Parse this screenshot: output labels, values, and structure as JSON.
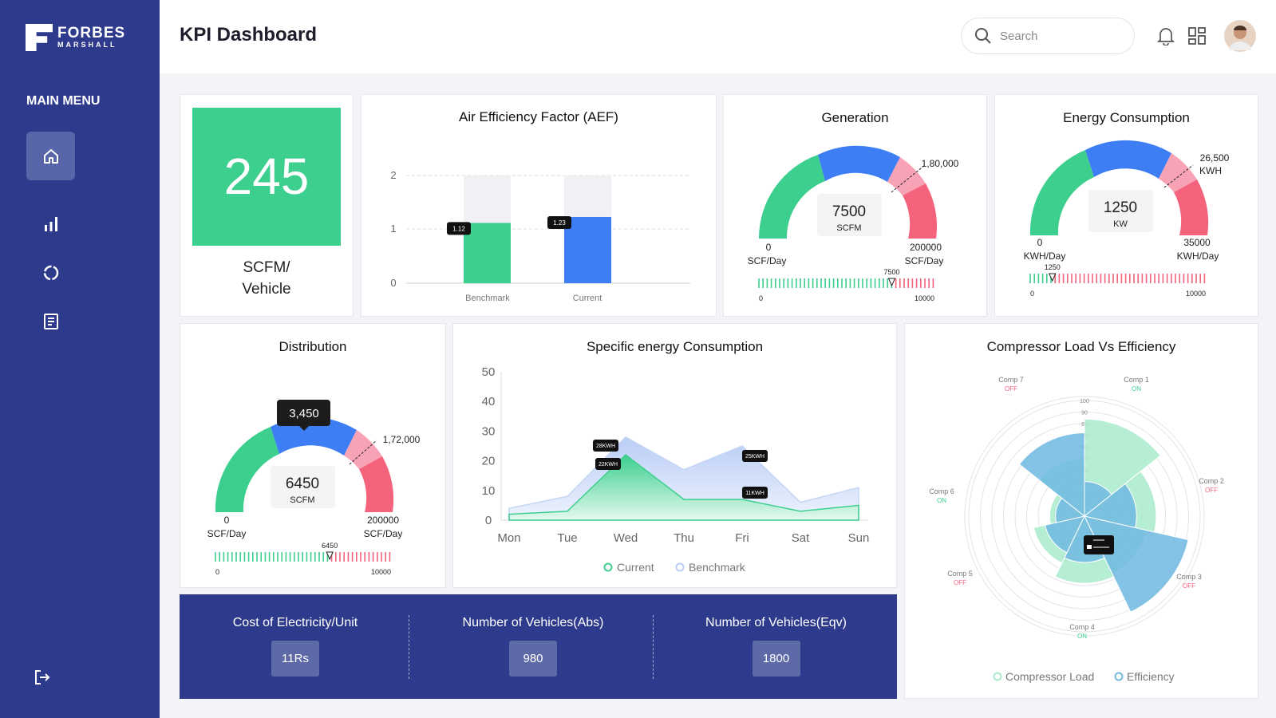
{
  "brand": {
    "name": "FORBES",
    "sub": "MARSHALL"
  },
  "sidebar": {
    "menu_title": "MAIN MENU",
    "items": [
      {
        "name": "home-icon"
      },
      {
        "name": "bar-chart-icon"
      },
      {
        "name": "circle-icon"
      },
      {
        "name": "report-icon"
      }
    ],
    "logout": "logout-icon"
  },
  "header": {
    "title": "KPI Dashboard",
    "search_placeholder": "Search"
  },
  "colors": {
    "accent": "#2e3a8c",
    "green": "#3ccf8e",
    "blue": "#3d7ef5",
    "pink": "#f7a3b5",
    "red": "#f4637b"
  },
  "kpi": {
    "value": "245",
    "unit_line1": "SCFM/",
    "unit_line2": "Vehicle"
  },
  "aef": {
    "title": "Air Efficiency Factor (AEF)",
    "y_ticks": [
      "2",
      "1",
      "0"
    ],
    "bars": [
      {
        "label": "Benchmark",
        "value": 1.12,
        "tag": "1.12"
      },
      {
        "label": "Current",
        "value": 1.23,
        "tag": "1.23"
      }
    ]
  },
  "generation": {
    "title": "Generation",
    "value": "7500",
    "unit": "SCFM",
    "max_label": "1,80,000",
    "min": "0",
    "min_unit": "SCF/Day",
    "max": "200000",
    "max_unit": "SCF/Day",
    "scale_min": "0",
    "scale_max": "10000",
    "marker": "7500",
    "marker_value": 7500
  },
  "energy": {
    "title": "Energy Consumption",
    "value": "1250",
    "unit": "KW",
    "max_label_1": "26,500",
    "max_label_2": "KWH",
    "min": "0",
    "min_unit": "KWH/Day",
    "max": "35000",
    "max_unit": "KWH/Day",
    "scale_min": "0",
    "scale_max": "10000",
    "marker": "1250",
    "marker_value": 1250
  },
  "distribution": {
    "title": "Distribution",
    "tooltip": "3,450",
    "value": "6450",
    "unit": "SCFM",
    "max_label": "1,72,000",
    "min": "0",
    "min_unit": "SCF/Day",
    "max": "200000",
    "max_unit": "SCF/Day",
    "scale_min": "0",
    "scale_max": "10000",
    "marker": "6450",
    "marker_value": 6450
  },
  "sec": {
    "title": "Specific energy Consumption",
    "y_ticks": [
      "50",
      "40",
      "30",
      "20",
      "10",
      "0"
    ],
    "days": [
      "Mon",
      "Tue",
      "Wed",
      "Thu",
      "Fri",
      "Sat",
      "Sun"
    ],
    "legend": [
      "Current",
      "Benchmark"
    ],
    "tags": [
      "28KWH",
      "22KWH",
      "25KWH",
      "11KWH"
    ]
  },
  "chart_data": {
    "type": "area",
    "title": "Specific energy Consumption",
    "categories": [
      "Mon",
      "Tue",
      "Wed",
      "Thu",
      "Fri",
      "Sat",
      "Sun"
    ],
    "ylim": [
      0,
      50
    ],
    "series": [
      {
        "name": "Current",
        "values": [
          2,
          3,
          22,
          7,
          7,
          3,
          5
        ]
      },
      {
        "name": "Benchmark",
        "values": [
          4,
          8,
          28,
          17,
          25,
          6,
          11
        ]
      }
    ]
  },
  "compressor": {
    "title": "Compressor Load Vs Efficiency",
    "legend": [
      "Compressor Load",
      "Efficiency"
    ],
    "comps": [
      {
        "name": "Comp 1",
        "status": "ON"
      },
      {
        "name": "Comp 2",
        "status": "OFF"
      },
      {
        "name": "Comp 3",
        "status": "OFF"
      },
      {
        "name": "Comp 4",
        "status": "ON"
      },
      {
        "name": "Comp 5",
        "status": "OFF"
      },
      {
        "name": "Comp 6",
        "status": "ON"
      },
      {
        "name": "Comp 7",
        "status": "OFF"
      }
    ],
    "radial_ticks": [
      "100",
      "90",
      "80",
      "70",
      "60",
      "50",
      "40",
      "30",
      "20",
      "10"
    ]
  },
  "bottom": {
    "items": [
      {
        "label": "Cost of Electricity/Unit",
        "value": "11Rs"
      },
      {
        "label": "Number of Vehicles(Abs)",
        "value": "980"
      },
      {
        "label": "Number of Vehicles(Eqv)",
        "value": "1800"
      }
    ]
  }
}
